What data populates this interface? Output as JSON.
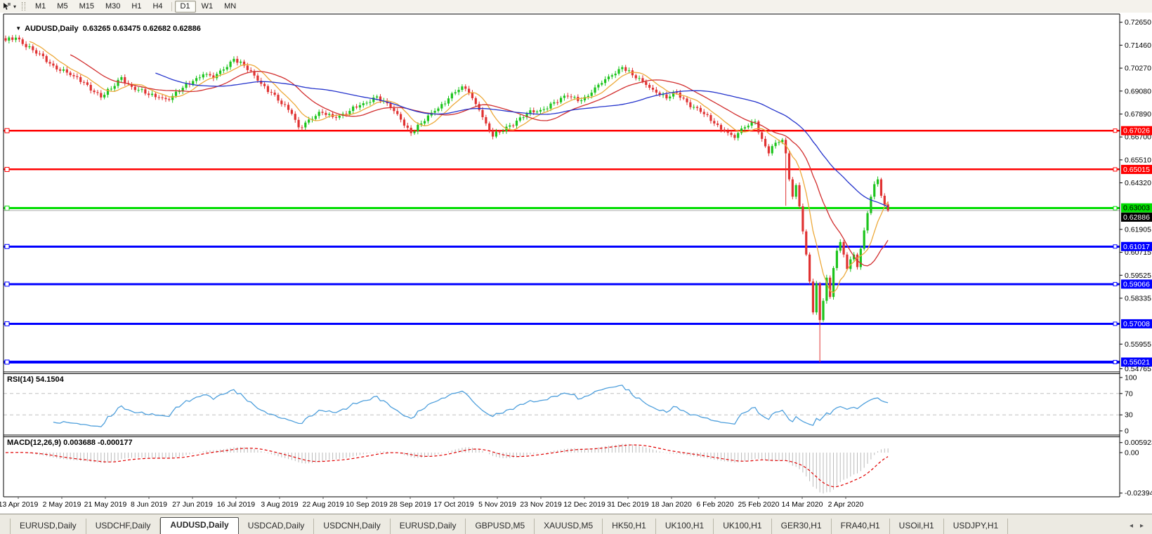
{
  "toolbar": {
    "timeframes": [
      "M1",
      "M5",
      "M15",
      "M30",
      "H1",
      "H4",
      "D1",
      "W1",
      "MN"
    ],
    "active_timeframe": "D1",
    "group_break_before": "D1"
  },
  "icons": {
    "chart_cursor": "chart-cursor",
    "dropdown_caret": "▾",
    "collapse_arrow": "▼",
    "tab_scroll_left": "◂",
    "tab_scroll_right": "▸"
  },
  "chart": {
    "title_symbol": "AUDUSD,Daily",
    "title_ohlc": "0.63265 0.63475 0.62682 0.62886",
    "rsi_label": "RSI(14) 54.1504",
    "macd_label": "MACD(12,26,9) 0.003688 -0.000177"
  },
  "chart_data": {
    "type": "candlestick",
    "symbol": "AUDUSD",
    "timeframe": "Daily",
    "ohlc_display": {
      "open": "0.63265",
      "high": "0.63475",
      "low": "0.62682",
      "close": "0.62886"
    },
    "grid": false,
    "candle_up_color": "#1cc41c",
    "candle_down_color": "#e03232",
    "price_axis": {
      "min": 0.54765,
      "max": 0.7265,
      "tick_labels": [
        "0.72650",
        "0.71460",
        "0.70270",
        "0.69080",
        "0.67890",
        "0.66700",
        "0.65510",
        "0.64320",
        "0.61905",
        "0.60715",
        "0.59525",
        "0.58335",
        "0.55955",
        "0.54765"
      ]
    },
    "x_labels": [
      "13 Apr 2019",
      "2 May 2019",
      "21 May 2019",
      "8 Jun 2019",
      "27 Jun 2019",
      "16 Jul 2019",
      "3 Aug 2019",
      "22 Aug 2019",
      "10 Sep 2019",
      "28 Sep 2019",
      "17 Oct 2019",
      "5 Nov 2019",
      "23 Nov 2019",
      "12 Dec 2019",
      "31 Dec 2019",
      "18 Jan 2020",
      "6 Feb 2020",
      "25 Feb 2020",
      "14 Mar 2020",
      "2 Apr 2020"
    ],
    "price_path_anchors": [
      [
        0,
        0.717
      ],
      [
        3,
        0.7185
      ],
      [
        8,
        0.712
      ],
      [
        14,
        0.704
      ],
      [
        20,
        0.6985
      ],
      [
        24,
        0.694
      ],
      [
        28,
        0.6875
      ],
      [
        31,
        0.692
      ],
      [
        34,
        0.698
      ],
      [
        37,
        0.693
      ],
      [
        41,
        0.6895
      ],
      [
        45,
        0.6875
      ],
      [
        48,
        0.6862
      ],
      [
        52,
        0.6925
      ],
      [
        55,
        0.696
      ],
      [
        58,
        0.6995
      ],
      [
        61,
        0.6975
      ],
      [
        64,
        0.702
      ],
      [
        67,
        0.7075
      ],
      [
        70,
        0.704
      ],
      [
        74,
        0.6962
      ],
      [
        78,
        0.69
      ],
      [
        81,
        0.684
      ],
      [
        84,
        0.679
      ],
      [
        86,
        0.672
      ],
      [
        89,
        0.676
      ],
      [
        93,
        0.6795
      ],
      [
        97,
        0.677
      ],
      [
        101,
        0.6805
      ],
      [
        105,
        0.6845
      ],
      [
        109,
        0.688
      ],
      [
        113,
        0.682
      ],
      [
        116,
        0.676
      ],
      [
        119,
        0.669
      ],
      [
        122,
        0.674
      ],
      [
        126,
        0.6805
      ],
      [
        130,
        0.687
      ],
      [
        134,
        0.6932
      ],
      [
        136,
        0.69
      ],
      [
        139,
        0.681
      ],
      [
        141,
        0.674
      ],
      [
        143,
        0.6672
      ],
      [
        148,
        0.673
      ],
      [
        153,
        0.679
      ],
      [
        157,
        0.681
      ],
      [
        161,
        0.685
      ],
      [
        165,
        0.688
      ],
      [
        169,
        0.686
      ],
      [
        172,
        0.69
      ],
      [
        175,
        0.695
      ],
      [
        178,
        0.699
      ],
      [
        181,
        0.7032
      ],
      [
        184,
        0.699
      ],
      [
        188,
        0.694
      ],
      [
        191,
        0.69
      ],
      [
        194,
        0.687
      ],
      [
        197,
        0.69
      ],
      [
        200,
        0.685
      ],
      [
        204,
        0.68
      ],
      [
        208,
        0.674
      ],
      [
        211,
        0.67
      ],
      [
        214,
        0.6665
      ],
      [
        217,
        0.672
      ],
      [
        220,
        0.675
      ],
      [
        222,
        0.666
      ],
      [
        224,
        0.6585
      ],
      [
        226,
        0.664
      ],
      [
        228,
        0.6655
      ],
      [
        229,
        0.6585
      ],
      [
        230,
        0.645
      ],
      [
        231,
        0.636
      ],
      [
        232,
        0.642
      ],
      [
        233,
        0.631
      ],
      [
        234,
        0.618
      ],
      [
        235,
        0.606
      ],
      [
        236,
        0.592
      ],
      [
        237,
        0.576
      ],
      [
        238,
        0.591
      ],
      [
        239,
        0.572
      ],
      [
        240,
        0.582
      ],
      [
        241,
        0.594
      ],
      [
        242,
        0.584
      ],
      [
        243,
        0.599
      ],
      [
        244,
        0.608
      ],
      [
        245,
        0.6125
      ],
      [
        246,
        0.606
      ],
      [
        247,
        0.5985
      ],
      [
        248,
        0.6035
      ],
      [
        249,
        0.606
      ],
      [
        250,
        0.5995
      ],
      [
        251,
        0.609
      ],
      [
        252,
        0.6185
      ],
      [
        253,
        0.6275
      ],
      [
        254,
        0.636
      ],
      [
        255,
        0.6425
      ],
      [
        256,
        0.645
      ],
      [
        257,
        0.6365
      ],
      [
        258,
        0.632
      ],
      [
        259,
        0.6289
      ]
    ],
    "wick_events": [
      {
        "day": 229,
        "low": 0.6313
      },
      {
        "day": 239,
        "low": 0.5502
      },
      {
        "day": 256,
        "high": 0.6465
      }
    ],
    "horizontal_lines": [
      {
        "price": 0.67026,
        "label": "0.67026",
        "color": "#ff0000",
        "width": 2.5,
        "text_color": "#ffffff"
      },
      {
        "price": 0.65015,
        "label": "0.65015",
        "color": "#ff0000",
        "width": 2.5,
        "text_color": "#ffffff"
      },
      {
        "price": 0.63003,
        "label": "0.63003",
        "color": "#00dd00",
        "width": 3,
        "text_color": "#000000"
      },
      {
        "price": 0.61017,
        "label": "0.61017",
        "color": "#0000ff",
        "width": 3,
        "text_color": "#ffffff"
      },
      {
        "price": 0.59066,
        "label": "0.59066",
        "color": "#0000ff",
        "width": 3,
        "text_color": "#ffffff"
      },
      {
        "price": 0.57008,
        "label": "0.57008",
        "color": "#0000ff",
        "width": 3,
        "text_color": "#ffffff"
      },
      {
        "price": 0.55021,
        "label": "0.55021",
        "color": "#0000ff",
        "width": 4,
        "text_color": "#ffffff"
      }
    ],
    "current_price": {
      "value": 0.62886,
      "label": "0.62886",
      "line_color": "#ababab",
      "tag_color": "#000000"
    },
    "moving_averages": [
      {
        "name": "fast",
        "period": 8,
        "color": "#eda93a"
      },
      {
        "name": "mid",
        "period": 20,
        "color": "#d22f2f"
      },
      {
        "name": "slow",
        "period": 45,
        "color": "#2433cc"
      }
    ],
    "rsi": {
      "period": 14,
      "value": 54.1504,
      "levels": [
        70,
        30
      ],
      "scale_labels": [
        "100",
        "70",
        "30",
        "0"
      ],
      "line_color": "#4e9fdc",
      "level_color": "#c0c0c0"
    },
    "macd": {
      "fast": 12,
      "slow": 26,
      "signal": 9,
      "macd_value": 0.003688,
      "signal_value": -0.000177,
      "scale_max_label": "0.005923",
      "zero_label": "0.00",
      "scale_min_label": "-0.023944",
      "scale_max": 0.005923,
      "scale_min": -0.023944,
      "bar_color": "#bababa",
      "signal_color": "#e00000"
    }
  },
  "tabs": {
    "items": [
      "EURUSD,Daily",
      "USDCHF,Daily",
      "AUDUSD,Daily",
      "USDCAD,Daily",
      "USDCNH,Daily",
      "EURUSD,Daily",
      "GBPUSD,M5",
      "XAUUSD,M5",
      "HK50,H1",
      "UK100,H1",
      "UK100,H1",
      "GER30,H1",
      "FRA40,H1",
      "USOil,H1",
      "USDJPY,H1"
    ],
    "active_index": 2
  }
}
